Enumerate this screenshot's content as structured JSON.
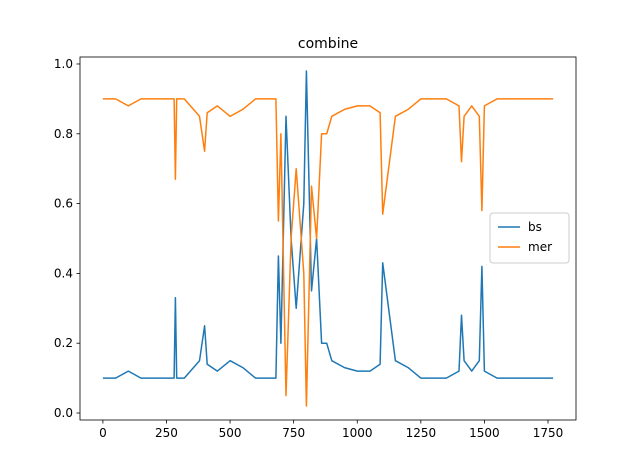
{
  "chart_data": {
    "type": "line",
    "title": "combine",
    "xlabel": "",
    "ylabel": "",
    "xlim": [
      -90,
      1860
    ],
    "ylim": [
      -0.02,
      1.02
    ],
    "xticks": [
      0,
      250,
      500,
      750,
      1000,
      1250,
      1500,
      1750
    ],
    "xtick_labels": [
      "0",
      "250",
      "500",
      "750",
      "1000",
      "1250",
      "1500",
      "1750"
    ],
    "yticks": [
      0.0,
      0.2,
      0.4,
      0.6,
      0.8,
      1.0
    ],
    "ytick_labels": [
      "0.0",
      "0.2",
      "0.4",
      "0.6",
      "0.8",
      "1.0"
    ],
    "legend_position": "center right",
    "grid": false,
    "series": [
      {
        "name": "bs",
        "color": "#1f77b4",
        "x": [
          0,
          50,
          100,
          150,
          200,
          250,
          280,
          285,
          290,
          320,
          380,
          400,
          410,
          450,
          500,
          550,
          600,
          650,
          680,
          690,
          700,
          720,
          740,
          760,
          790,
          800,
          820,
          840,
          860,
          880,
          900,
          950,
          1000,
          1050,
          1090,
          1100,
          1150,
          1200,
          1250,
          1300,
          1350,
          1400,
          1410,
          1420,
          1450,
          1480,
          1490,
          1500,
          1550,
          1600,
          1650,
          1700,
          1750,
          1770
        ],
        "y": [
          0.1,
          0.1,
          0.12,
          0.1,
          0.1,
          0.1,
          0.1,
          0.33,
          0.1,
          0.1,
          0.15,
          0.25,
          0.14,
          0.12,
          0.15,
          0.13,
          0.1,
          0.1,
          0.1,
          0.45,
          0.2,
          0.85,
          0.5,
          0.3,
          0.6,
          0.98,
          0.35,
          0.5,
          0.2,
          0.2,
          0.15,
          0.13,
          0.12,
          0.12,
          0.14,
          0.43,
          0.15,
          0.13,
          0.1,
          0.1,
          0.1,
          0.12,
          0.28,
          0.15,
          0.12,
          0.15,
          0.42,
          0.12,
          0.1,
          0.1,
          0.1,
          0.1,
          0.1,
          0.1
        ]
      },
      {
        "name": "mer",
        "color": "#ff7f0e",
        "x": [
          0,
          50,
          100,
          150,
          200,
          250,
          280,
          285,
          290,
          320,
          380,
          400,
          410,
          450,
          500,
          550,
          600,
          650,
          680,
          690,
          700,
          720,
          740,
          760,
          790,
          800,
          820,
          840,
          860,
          880,
          900,
          950,
          1000,
          1050,
          1090,
          1100,
          1150,
          1200,
          1250,
          1300,
          1350,
          1400,
          1410,
          1420,
          1450,
          1480,
          1490,
          1500,
          1550,
          1600,
          1650,
          1700,
          1750,
          1770
        ],
        "y": [
          0.9,
          0.9,
          0.88,
          0.9,
          0.9,
          0.9,
          0.9,
          0.67,
          0.9,
          0.9,
          0.85,
          0.75,
          0.86,
          0.88,
          0.85,
          0.87,
          0.9,
          0.9,
          0.9,
          0.55,
          0.8,
          0.05,
          0.5,
          0.7,
          0.4,
          0.02,
          0.65,
          0.5,
          0.8,
          0.8,
          0.85,
          0.87,
          0.88,
          0.88,
          0.86,
          0.57,
          0.85,
          0.87,
          0.9,
          0.9,
          0.9,
          0.88,
          0.72,
          0.85,
          0.88,
          0.85,
          0.58,
          0.88,
          0.9,
          0.9,
          0.9,
          0.9,
          0.9,
          0.9
        ]
      }
    ]
  }
}
